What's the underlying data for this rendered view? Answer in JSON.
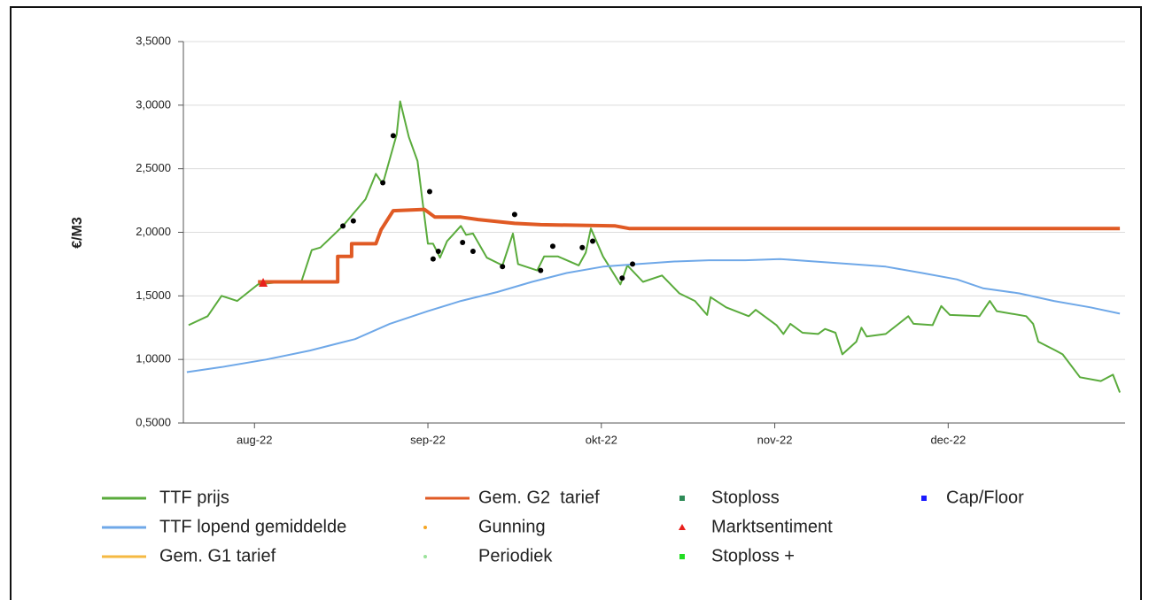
{
  "chart_data": {
    "type": "line",
    "y_label": "€/M3",
    "xlim": [
      -0.41,
      5.02
    ],
    "ylim": [
      0.5,
      3.5
    ],
    "xticks": [
      {
        "value": 0,
        "label": "aug-22"
      },
      {
        "value": 1,
        "label": "sep-22"
      },
      {
        "value": 2,
        "label": "okt-22"
      },
      {
        "value": 3,
        "label": "nov-22"
      },
      {
        "value": 4,
        "label": "dec-22"
      }
    ],
    "yticks": [
      {
        "value": 0.5,
        "label": "0,5000"
      },
      {
        "value": 1.0,
        "label": "1,0000"
      },
      {
        "value": 1.5,
        "label": "1,5000"
      },
      {
        "value": 2.0,
        "label": "2,0000"
      },
      {
        "value": 2.5,
        "label": "2,5000"
      },
      {
        "value": 3.0,
        "label": "3,0000"
      },
      {
        "value": 3.5,
        "label": "3,5000"
      }
    ],
    "grid": true,
    "legend": "bottom",
    "series": [
      {
        "name": "TTF prijs",
        "color": "#5aab3c",
        "marker": "line",
        "x": [
          -0.38,
          -0.27,
          -0.19,
          -0.1,
          0.02,
          0.16,
          0.27,
          0.33,
          0.38,
          0.51,
          0.64,
          0.7,
          0.74,
          0.82,
          0.84,
          0.89,
          0.94,
          0.97,
          1.0,
          1.03,
          1.07,
          1.11,
          1.19,
          1.22,
          1.26,
          1.34,
          1.43,
          1.49,
          1.52,
          1.63,
          1.67,
          1.75,
          1.87,
          1.91,
          1.94,
          2.01,
          2.11,
          2.15,
          2.24,
          2.35,
          2.45,
          2.54,
          2.61,
          2.63,
          2.72,
          2.85,
          2.89,
          3.01,
          3.05,
          3.09,
          3.16,
          3.25,
          3.29,
          3.35,
          3.39,
          3.47,
          3.5,
          3.53,
          3.64,
          3.77,
          3.8,
          3.91,
          3.96,
          4.01,
          4.18,
          4.24,
          4.28,
          4.45,
          4.49,
          4.52,
          4.62,
          4.66,
          4.76,
          4.88,
          4.95,
          4.99
        ],
        "values": [
          1.27,
          1.34,
          1.5,
          1.46,
          1.59,
          1.61,
          1.61,
          1.86,
          1.88,
          2.05,
          2.26,
          2.46,
          2.38,
          2.77,
          3.03,
          2.75,
          2.56,
          2.23,
          1.91,
          1.91,
          1.8,
          1.93,
          2.05,
          1.98,
          1.99,
          1.8,
          1.74,
          1.99,
          1.75,
          1.7,
          1.81,
          1.81,
          1.74,
          1.84,
          2.03,
          1.81,
          1.59,
          1.74,
          1.61,
          1.66,
          1.52,
          1.46,
          1.35,
          1.49,
          1.41,
          1.34,
          1.39,
          1.27,
          1.2,
          1.28,
          1.21,
          1.2,
          1.24,
          1.21,
          1.04,
          1.14,
          1.25,
          1.18,
          1.2,
          1.34,
          1.28,
          1.27,
          1.42,
          1.35,
          1.34,
          1.46,
          1.38,
          1.34,
          1.28,
          1.14,
          1.07,
          1.04,
          0.86,
          0.83,
          0.88,
          0.74
        ]
      },
      {
        "name": "TTF lopend gemiddelde",
        "color": "#6fa8e8",
        "marker": "line",
        "x": [
          -0.39,
          -0.19,
          0.07,
          0.32,
          0.58,
          0.78,
          1.0,
          1.19,
          1.4,
          1.6,
          1.8,
          2.01,
          2.21,
          2.42,
          2.62,
          2.83,
          3.03,
          3.23,
          3.44,
          3.64,
          3.85,
          4.05,
          4.2,
          4.41,
          4.61,
          4.82,
          4.99
        ],
        "values": [
          0.9,
          0.94,
          1.0,
          1.07,
          1.16,
          1.28,
          1.38,
          1.46,
          1.53,
          1.61,
          1.68,
          1.73,
          1.75,
          1.77,
          1.78,
          1.78,
          1.79,
          1.77,
          1.75,
          1.73,
          1.68,
          1.63,
          1.56,
          1.52,
          1.46,
          1.41,
          1.36
        ]
      },
      {
        "name": "Gem. G1 tarief",
        "color": "#f5b942",
        "marker": "line",
        "x": [],
        "values": []
      },
      {
        "name": "Gem. G2  tarief",
        "color": "#e05a24",
        "marker": "line",
        "x": [
          0.02,
          0.48,
          0.48,
          0.56,
          0.56,
          0.7,
          0.73,
          0.8,
          0.98,
          1.04,
          1.19,
          1.29,
          1.5,
          1.65,
          2.08,
          2.16,
          4.99
        ],
        "values": [
          1.61,
          1.61,
          1.81,
          1.81,
          1.91,
          1.91,
          2.02,
          2.17,
          2.18,
          2.12,
          2.12,
          2.1,
          2.07,
          2.06,
          2.05,
          2.03,
          2.03
        ]
      },
      {
        "name": "Gunning",
        "color": "#f5a623",
        "marker": "dot",
        "x": [],
        "values": []
      },
      {
        "name": "Periodiek",
        "color": "#9be29b",
        "marker": "dot",
        "x": [],
        "values": []
      },
      {
        "name": "Stoploss",
        "color": "#2e8b57",
        "marker": "square",
        "x": [],
        "values": []
      },
      {
        "name": "Marktsentiment",
        "color": "#e8201c",
        "marker": "triangle",
        "x": [
          0.05
        ],
        "values": [
          1.6
        ]
      },
      {
        "name": "Stoploss +",
        "color": "#22dd22",
        "marker": "square",
        "x": [],
        "values": []
      },
      {
        "name": "Cap/Floor",
        "color": "#1a1aff",
        "marker": "square",
        "x": [],
        "values": []
      },
      {
        "color": "#000000",
        "marker": "dot",
        "x": [
          0.51,
          0.57,
          0.74,
          0.8,
          1.01,
          1.03,
          1.06,
          1.2,
          1.26,
          1.43,
          1.5,
          1.65,
          1.72,
          1.89,
          1.95,
          2.12,
          2.18
        ],
        "values": [
          2.05,
          2.09,
          2.39,
          2.76,
          2.32,
          1.79,
          1.85,
          1.92,
          1.85,
          1.73,
          2.14,
          1.7,
          1.89,
          1.88,
          1.93,
          1.64,
          1.75
        ]
      }
    ]
  }
}
